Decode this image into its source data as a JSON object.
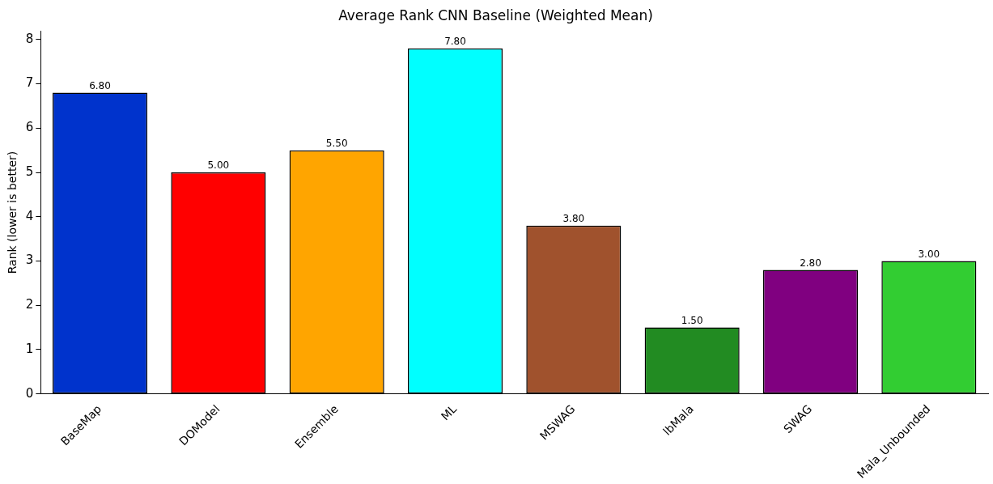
{
  "chart_data": {
    "type": "bar",
    "title": "Average Rank CNN Baseline (Weighted Mean)",
    "ylabel": "Rank (lower is better)",
    "categories": [
      "BaseMap",
      "DOModel",
      "Ensemble",
      "ML",
      "MSWAG",
      "lbMala",
      "SWAG",
      "Mala_Unbounded"
    ],
    "values": [
      6.8,
      5.0,
      5.5,
      7.8,
      3.8,
      1.5,
      2.8,
      3.0
    ],
    "colors": [
      "#0033cc",
      "#ff0000",
      "#ffa500",
      "#00ffff",
      "#a0522d",
      "#228b22",
      "#800080",
      "#32cd32"
    ],
    "value_labels": [
      "6.80",
      "5.00",
      "5.50",
      "7.80",
      "3.80",
      "1.50",
      "2.80",
      "3.00"
    ],
    "ylim": [
      0,
      8.19
    ],
    "yticks": [
      0,
      1,
      2,
      3,
      4,
      5,
      6,
      7,
      8
    ],
    "grid": false,
    "legend": false
  }
}
